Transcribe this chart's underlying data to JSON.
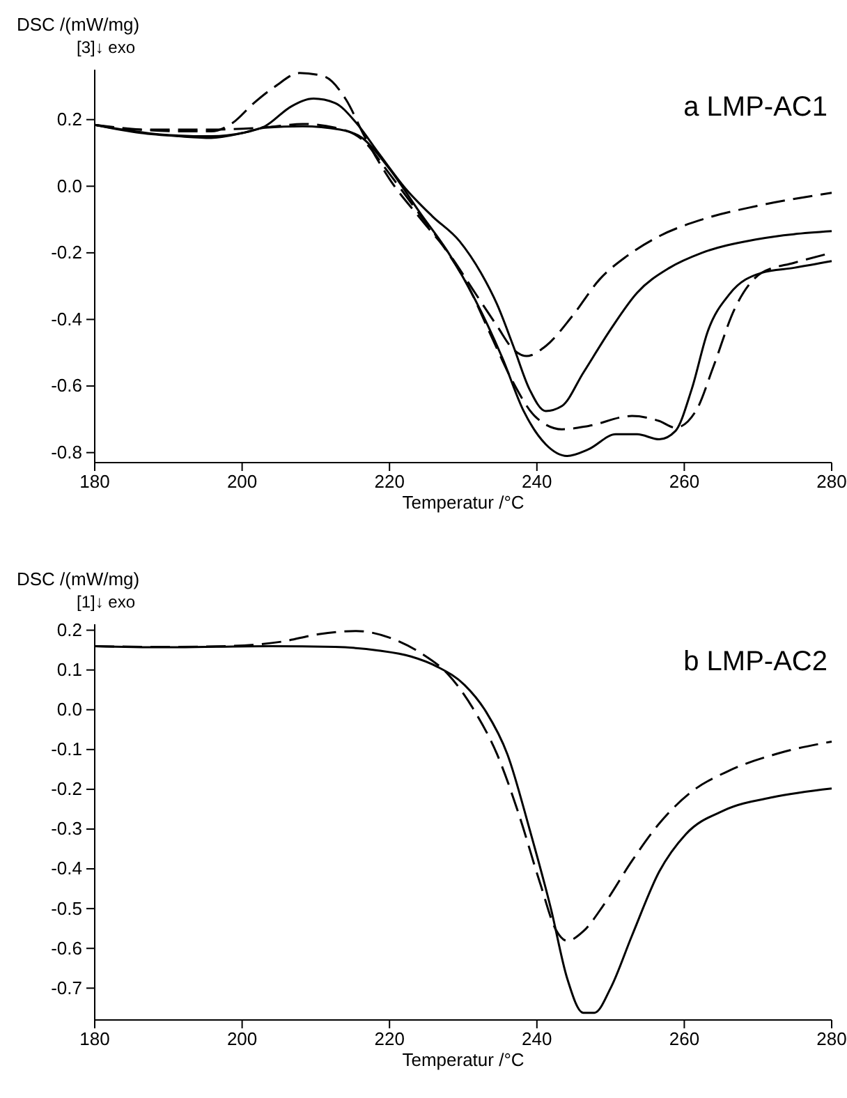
{
  "chart_data": [
    {
      "type": "line",
      "ylabel": "DSC /(mW/mg)",
      "xlabel": "Temperatur /°C",
      "annotations": [
        "[3]↓ exo",
        "a LMP-AC1"
      ],
      "xlim": [
        180,
        280
      ],
      "xticks": [
        180,
        200,
        220,
        240,
        260,
        280
      ],
      "ylim": [
        -0.83,
        0.35
      ],
      "yticks": [
        {
          "value": 0.2,
          "label": "0.2"
        },
        {
          "value": 0,
          "label": "0.0"
        },
        {
          "value": -0.2,
          "label": "-0.2"
        },
        {
          "value": -0.4,
          "label": "-0.4"
        },
        {
          "value": -0.6,
          "label": "-0.6"
        },
        {
          "value": -0.8,
          "label": "-0.8"
        }
      ],
      "grid": false,
      "series": [
        {
          "color": "#000000",
          "line_style": "dashed",
          "x": [
            180,
            186.2,
            191.4,
            195.8,
            198.7,
            201.6,
            204.5,
            207.8,
            211.1,
            214.1,
            216.6,
            219.9,
            224.3,
            228,
            231.6,
            234.6,
            236.8,
            238.6,
            241.2,
            244.8,
            248.5,
            252.2,
            256.6,
            262.4,
            269.7,
            280
          ],
          "values": [
            0.184,
            0.17,
            0.165,
            0.165,
            0.19,
            0.25,
            0.3,
            0.34,
            0.33,
            0.26,
            0.15,
            0.025,
            -0.1,
            -0.2,
            -0.32,
            -0.42,
            -0.49,
            -0.51,
            -0.48,
            -0.39,
            -0.28,
            -0.21,
            -0.15,
            -0.1,
            -0.06,
            -0.02
          ]
        },
        {
          "color": "#000000",
          "line_style": "solid",
          "x": [
            180,
            189.2,
            195.8,
            200.1,
            203.1,
            206.7,
            209.7,
            212.6,
            215.5,
            218.5,
            222.1,
            225.8,
            229.5,
            232.4,
            234.6,
            236.8,
            239,
            241.2,
            243.4,
            246.3,
            250,
            253.6,
            258,
            262.4,
            269.7,
            280
          ],
          "values": [
            0.184,
            0.155,
            0.15,
            0.16,
            0.18,
            0.24,
            0.263,
            0.25,
            0.19,
            0.1,
            -0.005,
            -0.09,
            -0.165,
            -0.26,
            -0.355,
            -0.48,
            -0.61,
            -0.675,
            -0.66,
            -0.56,
            -0.43,
            -0.32,
            -0.245,
            -0.2,
            -0.16,
            -0.135
          ]
        },
        {
          "color": "#000000",
          "line_style": "dashed",
          "x": [
            180,
            186.2,
            195.8,
            203.8,
            208.2,
            212.6,
            216.3,
            219.9,
            223.6,
            227.3,
            230.9,
            233.8,
            236.8,
            239.7,
            243.4,
            247,
            252.9,
            256.6,
            258.8,
            261.7,
            263.9,
            266.8,
            270.5,
            274.9,
            280
          ],
          "values": [
            0.184,
            0.17,
            0.17,
            0.178,
            0.187,
            0.176,
            0.14,
            0.04,
            -0.07,
            -0.18,
            -0.31,
            -0.45,
            -0.59,
            -0.69,
            -0.73,
            -0.72,
            -0.69,
            -0.705,
            -0.725,
            -0.67,
            -0.545,
            -0.37,
            -0.26,
            -0.23,
            -0.2
          ]
        },
        {
          "color": "#000000",
          "line_style": "solid",
          "x": [
            180,
            186.2,
            191.4,
            195.8,
            200.1,
            203.1,
            208.2,
            213.3,
            216.3,
            219.9,
            224.3,
            228,
            231.6,
            235.3,
            238.2,
            241.2,
            244.1,
            247,
            250.7,
            253.6,
            256.6,
            258.8,
            261,
            263.2,
            266.1,
            270.5,
            274.9,
            280
          ],
          "values": [
            0.184,
            0.16,
            0.15,
            0.145,
            0.16,
            0.176,
            0.18,
            0.17,
            0.145,
            0.055,
            -0.085,
            -0.2,
            -0.34,
            -0.515,
            -0.675,
            -0.775,
            -0.81,
            -0.79,
            -0.745,
            -0.745,
            -0.76,
            -0.735,
            -0.61,
            -0.435,
            -0.325,
            -0.26,
            -0.245,
            -0.225
          ]
        }
      ]
    },
    {
      "type": "line",
      "ylabel": "DSC /(mW/mg)",
      "xlabel": "Temperatur /°C",
      "annotations": [
        "[1]↓ exo",
        "b LMP-AC2"
      ],
      "xlim": [
        180,
        280
      ],
      "xticks": [
        180,
        200,
        220,
        240,
        260,
        280
      ],
      "ylim": [
        -0.78,
        0.215
      ],
      "yticks": [
        {
          "value": 0.2,
          "label": "0.2"
        },
        {
          "value": 0.1,
          "label": "0.1"
        },
        {
          "value": 0,
          "label": "0.0"
        },
        {
          "value": -0.1,
          "label": "-0.1"
        },
        {
          "value": -0.2,
          "label": "-0.2"
        },
        {
          "value": -0.3,
          "label": "-0.3"
        },
        {
          "value": -0.4,
          "label": "-0.4"
        },
        {
          "value": -0.5,
          "label": "-0.5"
        },
        {
          "value": -0.6,
          "label": "-0.6"
        },
        {
          "value": -0.7,
          "label": "-0.7"
        }
      ],
      "grid": false,
      "series": [
        {
          "color": "#000000",
          "line_style": "dashed",
          "x": [
            180,
            189.2,
            197.9,
            205.3,
            210.4,
            215.5,
            219.9,
            224.3,
            228,
            231.6,
            234.6,
            237.5,
            240.4,
            242.6,
            244.1,
            246.3,
            249.2,
            252.9,
            256.6,
            261,
            266.1,
            272.7,
            280
          ],
          "values": [
            0.16,
            0.158,
            0.16,
            0.171,
            0.19,
            0.198,
            0.182,
            0.142,
            0.088,
            -0.005,
            -0.112,
            -0.26,
            -0.434,
            -0.554,
            -0.581,
            -0.557,
            -0.487,
            -0.38,
            -0.286,
            -0.206,
            -0.153,
            -0.11,
            -0.08
          ]
        },
        {
          "color": "#000000",
          "line_style": "solid",
          "x": [
            180,
            189.2,
            203.8,
            212.6,
            218.5,
            222.9,
            226.5,
            230.2,
            233.1,
            236,
            239,
            241.9,
            244.1,
            246.3,
            247.8,
            250,
            252.9,
            256.6,
            260.2,
            265.4,
            272,
            280
          ],
          "values": [
            0.16,
            0.157,
            0.16,
            0.158,
            0.149,
            0.134,
            0.108,
            0.062,
            -0.005,
            -0.112,
            -0.3,
            -0.5,
            -0.675,
            -0.762,
            -0.762,
            -0.7,
            -0.568,
            -0.407,
            -0.313,
            -0.253,
            -0.22,
            -0.198
          ]
        }
      ]
    }
  ]
}
